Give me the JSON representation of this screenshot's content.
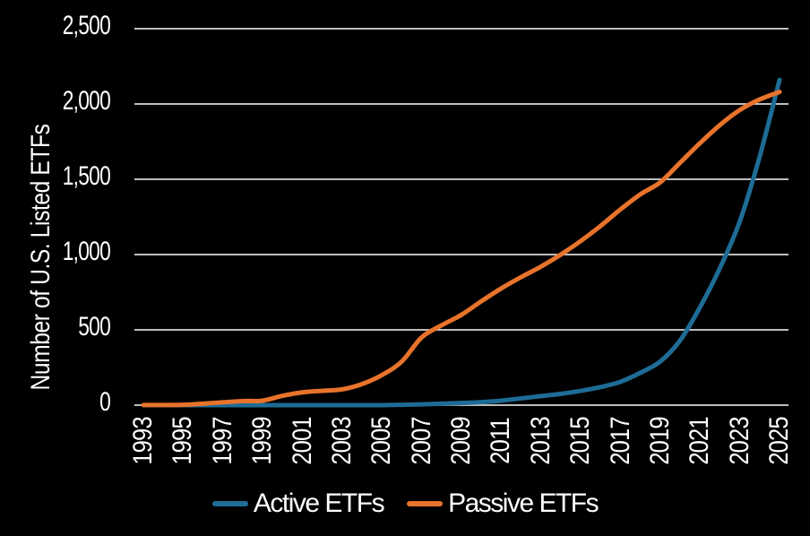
{
  "chart_data": {
    "type": "line",
    "title": "",
    "xlabel": "",
    "ylabel": "Number of U.S. Listed ETFs",
    "background": "#000000",
    "text_color": "#ffffff",
    "gridline_color": "#d8d8d8",
    "grid": "horizontal",
    "legend_position": "bottom",
    "xlim": [
      1993,
      2025
    ],
    "ylim": [
      0,
      2500
    ],
    "x": [
      1993,
      1994,
      1995,
      1996,
      1997,
      1998,
      1999,
      2000,
      2001,
      2002,
      2003,
      2004,
      2005,
      2006,
      2007,
      2008,
      2009,
      2010,
      2011,
      2012,
      2013,
      2014,
      2015,
      2016,
      2017,
      2018,
      2019,
      2020,
      2021,
      2022,
      2023,
      2024,
      2025
    ],
    "x_tick_labels": [
      "1993",
      "1995",
      "1997",
      "1999",
      "2001",
      "2003",
      "2005",
      "2007",
      "2009",
      "2011",
      "2013",
      "2015",
      "2017",
      "2019",
      "2021",
      "2023",
      "2025"
    ],
    "y_ticks": [
      0,
      500,
      1000,
      1500,
      2000,
      2500
    ],
    "y_tick_labels": [
      "0",
      "500",
      "1,000",
      "1,500",
      "2,000",
      "2,500"
    ],
    "series": [
      {
        "name": "Active ETFs",
        "color": "#1e6c96",
        "values": [
          0,
          0,
          0,
          0,
          0,
          0,
          0,
          0,
          0,
          0,
          0,
          0,
          0,
          2,
          5,
          10,
          14,
          20,
          30,
          45,
          60,
          75,
          95,
          120,
          155,
          215,
          290,
          430,
          650,
          910,
          1220,
          1650,
          2160
        ]
      },
      {
        "name": "Passive ETFs",
        "color": "#e8732b",
        "values": [
          1,
          1,
          2,
          10,
          19,
          27,
          30,
          62,
          85,
          95,
          105,
          140,
          200,
          290,
          450,
          530,
          600,
          690,
          775,
          850,
          920,
          1000,
          1090,
          1190,
          1300,
          1400,
          1480,
          1610,
          1740,
          1860,
          1960,
          2030,
          2080
        ]
      }
    ]
  }
}
